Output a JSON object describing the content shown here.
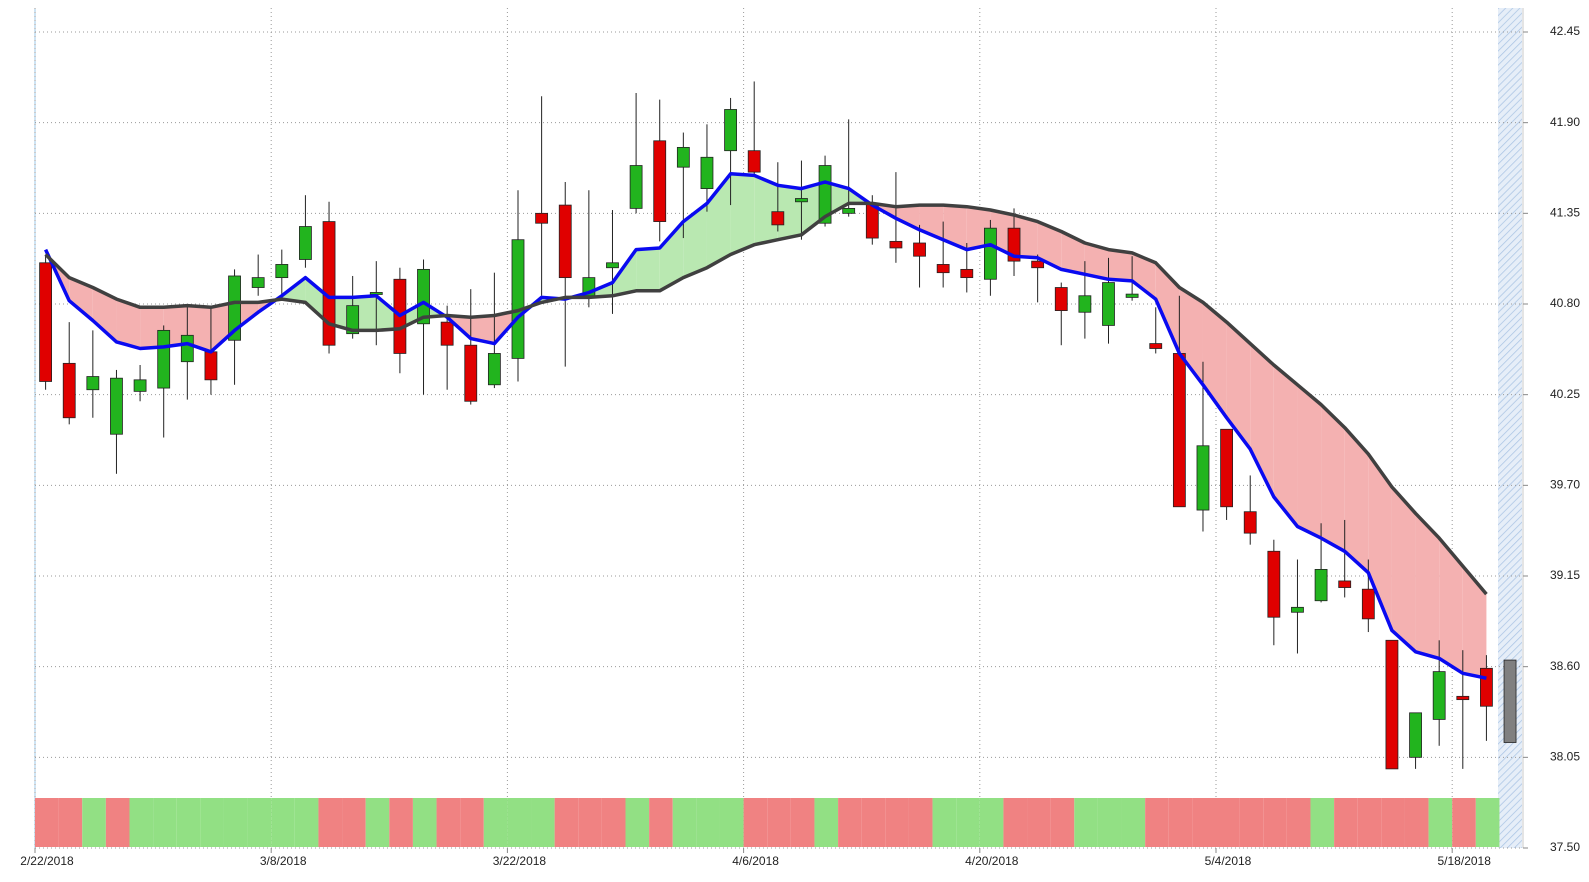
{
  "chart_data": {
    "type": "candlestick",
    "xticks": [
      {
        "value": 0,
        "label": "2/22/2018"
      },
      {
        "value": 10,
        "label": "3/8/2018"
      },
      {
        "value": 20,
        "label": "3/22/2018"
      },
      {
        "value": 30,
        "label": "4/6/2018"
      },
      {
        "value": 40,
        "label": "4/20/2018"
      },
      {
        "value": 50,
        "label": "5/4/2018"
      },
      {
        "value": 60,
        "label": "5/18/2018"
      }
    ],
    "ylim": [
      37.5,
      42.45
    ],
    "yticks": [
      {
        "value": 37.5,
        "label": "37.50"
      },
      38.05,
      {
        "value": 38.6,
        "label": "38.60"
      },
      39.15,
      {
        "value": 39.7,
        "label": "39.70"
      },
      40.25,
      {
        "value": 40.8,
        "label": "40.80"
      },
      41.35,
      {
        "value": 41.9,
        "label": "41.90"
      },
      42.45
    ],
    "grid": true,
    "up_color": "#22b41e",
    "down_color": "#e00000",
    "last_color": "#808080",
    "open": [
      41.05,
      40.44,
      40.28,
      40.01,
      40.27,
      40.29,
      40.45,
      40.51,
      40.58,
      40.9,
      40.96,
      41.07,
      41.3,
      40.62,
      40.86,
      40.95,
      40.68,
      40.69,
      40.55,
      40.31,
      40.47,
      41.35,
      41.4,
      40.85,
      41.02,
      41.38,
      41.79,
      41.63,
      41.5,
      41.73,
      41.73,
      41.36,
      41.42,
      41.29,
      41.35,
      41.41,
      41.18,
      41.17,
      41.04,
      41.01,
      40.95,
      41.26,
      41.06,
      40.9,
      40.75,
      40.67,
      40.84,
      40.56,
      40.5,
      39.55,
      40.04,
      39.54,
      39.3,
      38.93,
      39.0,
      39.12,
      39.07,
      38.76,
      38.05,
      38.28,
      38.42,
      38.59,
      38.64
    ],
    "high": [
      41.1,
      40.69,
      40.64,
      40.4,
      40.43,
      40.67,
      40.78,
      40.78,
      41.01,
      41.1,
      41.13,
      41.46,
      41.42,
      40.97,
      41.06,
      41.02,
      41.07,
      40.79,
      40.89,
      40.99,
      41.49,
      42.06,
      41.54,
      41.49,
      41.37,
      42.08,
      42.04,
      41.84,
      41.89,
      42.05,
      42.15,
      41.66,
      41.67,
      41.7,
      41.92,
      41.46,
      41.6,
      41.28,
      41.3,
      41.17,
      41.31,
      41.38,
      41.1,
      40.93,
      41.06,
      41.08,
      41.09,
      40.78,
      40.85,
      40.45,
      40.04,
      39.76,
      39.37,
      39.25,
      39.47,
      39.49,
      39.25,
      38.76,
      38.32,
      38.76,
      38.7,
      38.67,
      38.64
    ],
    "low": [
      40.28,
      40.07,
      40.11,
      39.77,
      40.21,
      39.99,
      40.22,
      40.25,
      40.31,
      40.85,
      40.84,
      41.02,
      40.5,
      40.59,
      40.55,
      40.38,
      40.25,
      40.28,
      40.19,
      40.29,
      40.33,
      40.85,
      40.42,
      40.78,
      40.74,
      41.35,
      41.18,
      41.2,
      41.36,
      41.4,
      41.58,
      41.24,
      41.19,
      41.27,
      41.33,
      41.16,
      41.05,
      40.9,
      40.9,
      40.87,
      40.85,
      40.97,
      40.81,
      40.55,
      40.59,
      40.56,
      40.82,
      40.5,
      39.57,
      39.42,
      39.49,
      39.34,
      38.73,
      38.68,
      38.99,
      39.02,
      38.81,
      37.98,
      37.98,
      38.12,
      37.98,
      38.15,
      38.14
    ],
    "close": [
      40.33,
      40.11,
      40.36,
      40.35,
      40.34,
      40.64,
      40.61,
      40.34,
      40.97,
      40.96,
      41.04,
      41.27,
      40.55,
      40.79,
      40.87,
      40.5,
      41.01,
      40.55,
      40.21,
      40.5,
      41.19,
      41.29,
      40.96,
      40.96,
      41.05,
      41.64,
      41.3,
      41.75,
      41.69,
      41.98,
      41.6,
      41.28,
      41.44,
      41.64,
      41.38,
      41.2,
      41.14,
      41.09,
      40.99,
      40.96,
      41.26,
      41.06,
      41.02,
      40.76,
      40.85,
      40.93,
      40.86,
      40.53,
      39.57,
      39.94,
      39.57,
      39.41,
      38.9,
      38.96,
      39.19,
      39.08,
      38.89,
      37.98,
      38.32,
      38.57,
      38.4,
      38.36,
      38.14
    ],
    "lines": [
      {
        "color": "#0a0af0",
        "values": [
          41.13,
          40.82,
          40.7,
          40.57,
          40.53,
          40.54,
          40.56,
          40.51,
          40.64,
          40.75,
          40.85,
          40.96,
          40.84,
          40.84,
          40.85,
          40.73,
          40.81,
          40.72,
          40.59,
          40.56,
          40.72,
          40.84,
          40.83,
          40.87,
          40.93,
          41.13,
          41.14,
          41.3,
          41.41,
          41.59,
          41.58,
          41.52,
          41.5,
          41.54,
          41.5,
          41.4,
          41.32,
          41.25,
          41.19,
          41.13,
          41.16,
          41.09,
          41.08,
          41.01,
          40.98,
          40.95,
          40.94,
          40.83,
          40.5,
          40.31,
          40.11,
          39.92,
          39.63,
          39.45,
          39.38,
          39.3,
          39.17,
          38.82,
          38.69,
          38.65,
          38.56,
          38.53,
          null
        ]
      },
      {
        "color": "#404040",
        "values": [
          41.1,
          40.96,
          40.9,
          40.83,
          40.78,
          40.78,
          40.79,
          40.78,
          40.81,
          40.81,
          40.83,
          40.81,
          40.68,
          40.64,
          40.64,
          40.65,
          40.72,
          40.73,
          40.72,
          40.73,
          40.76,
          40.81,
          40.84,
          40.84,
          40.85,
          40.88,
          40.88,
          40.96,
          41.02,
          41.1,
          41.16,
          41.19,
          41.22,
          41.33,
          41.41,
          41.41,
          41.39,
          41.4,
          41.4,
          41.39,
          41.37,
          41.34,
          41.3,
          41.24,
          41.17,
          41.13,
          41.11,
          41.05,
          40.9,
          40.81,
          40.69,
          40.56,
          40.43,
          40.31,
          40.19,
          40.05,
          39.89,
          39.69,
          39.53,
          39.38,
          39.21,
          39.04,
          null
        ]
      }
    ],
    "fill_up_color": "#b9e8b1",
    "fill_down_color": "#f4b1b1",
    "band_colors": [
      "#f08282",
      "#f08282",
      "#92e084",
      "#f08282",
      "#92e084",
      "#92e084",
      "#92e084",
      "#92e084",
      "#92e084",
      "#92e084",
      "#92e084",
      "#92e084",
      "#f08282",
      "#f08282",
      "#92e084",
      "#f08282",
      "#92e084",
      "#f08282",
      "#f08282",
      "#92e084",
      "#92e084",
      "#92e084",
      "#f08282",
      "#f08282",
      "#f08282",
      "#92e084",
      "#f08282",
      "#92e084",
      "#92e084",
      "#92e084",
      "#f08282",
      "#f08282",
      "#f08282",
      "#92e084",
      "#f08282",
      "#f08282",
      "#f08282",
      "#f08282",
      "#92e084",
      "#92e084",
      "#92e084",
      "#f08282",
      "#f08282",
      "#f08282",
      "#92e084",
      "#92e084",
      "#92e084",
      "#f08282",
      "#f08282",
      "#f08282",
      "#f08282",
      "#f08282",
      "#f08282",
      "#f08282",
      "#92e084",
      "#f08282",
      "#f08282",
      "#f08282",
      "#f08282",
      "#92e084",
      "#f08282",
      "#92e084"
    ]
  }
}
